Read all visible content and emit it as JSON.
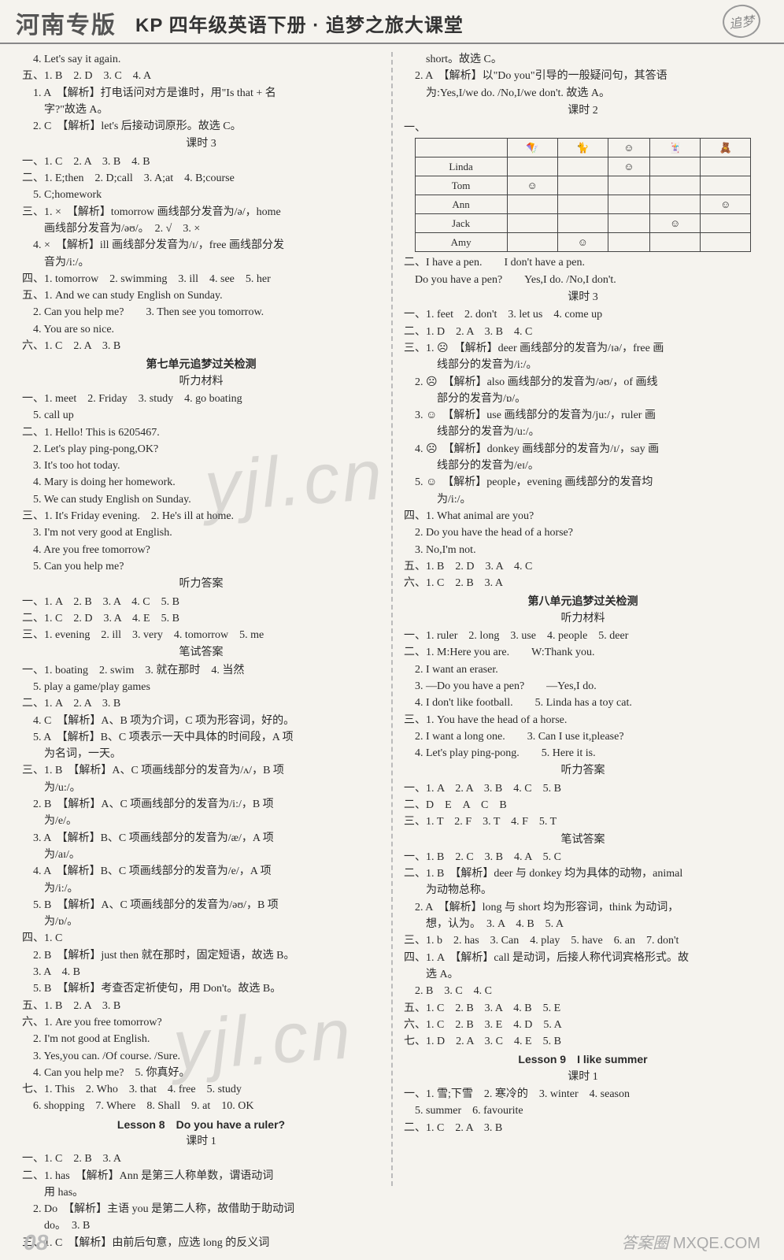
{
  "header": {
    "henan": "河南专版",
    "title": "KP 四年级英语下册 · 追梦之旅大课堂",
    "stamp": "追梦"
  },
  "watermark": {
    "w1": "yjl.cn",
    "w2": "yjl.cn"
  },
  "left": {
    "l01": "　4. Let's say it again.",
    "l02": "五、1. B　2. D　3. C　4. A",
    "l03": "　1. A　【解析】打电话问对方是谁时，用\"Is that + 名",
    "l04": "　　字?\"故选 A。",
    "l05": "　2. C　【解析】let's 后接动词原形。故选 C。",
    "h_ks3": "课时 3",
    "l06": "一、1. C　2. A　3. B　4. B",
    "l07": "二、1. E;then　2. D;call　3. A;at　4. B;course",
    "l08": "　5. C;homework",
    "l09": "三、1. ×　【解析】tomorrow 画线部分发音为/ə/，home",
    "l10": "　　画线部分发音为/əʊ/。　2. √　3. ×",
    "l11": "　4. ×　【解析】ill 画线部分发音为/ɪ/，free 画线部分发",
    "l12": "　　音为/i:/。",
    "l13": "四、1. tomorrow　2. swimming　3. ill　4. see　5. her",
    "l14": "五、1. And we can study English on Sunday.",
    "l15": "　2. Can you help me?　　3. Then see you tomorrow.",
    "l16": "　4. You are so nice.",
    "l17": "六、1. C　2. A　3. B",
    "h_u7": "第七单元追梦过关检测",
    "h_tl": "听力材料",
    "l18": "一、1. meet　2. Friday　3. study　4. go boating",
    "l19": "　5. call up",
    "l20": "二、1. Hello!  This is 6205467.",
    "l21": "　2. Let's play ping-pong,OK?",
    "l22": "　3. It's too hot today.",
    "l23": "　4. Mary is doing her homework.",
    "l24": "　5. We can study English on Sunday.",
    "l25": "三、1. It's Friday evening.　2. He's ill at home.",
    "l26": "　3. I'm not very good at English.",
    "l27": "　4. Are you free tomorrow?",
    "l28": "　5. Can you help me?",
    "h_tlda": "听力答案",
    "l29": "一、1. A　2. B　3. A　4. C　5. B",
    "l30": "二、1. C　2. D　3. A　4. E　5. B",
    "l31": "三、1. evening　2. ill　3. very　4. tomorrow　5. me",
    "h_bsda": "笔试答案",
    "l32": "一、1. boating　2. swim　3. 就在那时　4. 当然",
    "l33": "　5. play a game/play games",
    "l34": "二、1. A　2. A　3. B",
    "l35": "　4. C　【解析】A、B 项为介词，C 项为形容词，好的。",
    "l36": "　5. A　【解析】B、C 项表示一天中具体的时间段，A 项",
    "l37": "　　为名词，一天。",
    "l38": "三、1. B　【解析】A、C 项画线部分的发音为/ʌ/，B 项",
    "l39": "　　为/u:/。",
    "l40": "　2. B　【解析】A、C 项画线部分的发音为/i:/，B 项",
    "l41": "　　为/e/。",
    "l42": "　3. A　【解析】B、C 项画线部分的发音为/æ/，A 项",
    "l43": "　　为/aɪ/。",
    "l44": "　4. A　【解析】B、C 项画线部分的发音为/e/，A 项",
    "l45": "　　为/i:/。",
    "l46": "　5. B　【解析】A、C 项画线部分的发音为/əʊ/，B 项",
    "l47": "　　为/ɒ/。",
    "l48": "四、1. C",
    "l49": "　2. B　【解析】just then 就在那时，固定短语，故选 B。",
    "l50": "　3. A　4. B",
    "l51": "　5. B　【解析】考查否定祈使句，用 Don't。故选 B。",
    "l52": "五、1. B　2. A　3. B",
    "l53": "六、1. Are you free tomorrow?",
    "l54": "　2. I'm not good at English.",
    "l55": "　3. Yes,you can. /Of course. /Sure.",
    "l56": "　4. Can you help me?　5. 你真好。",
    "l57": "七、1. This　2. Who　3. that　4. free　5. study",
    "l58": "　6. shopping　7. Where　8. Shall　9. at　10. OK",
    "h_l8": "Lesson 8　Do you have a ruler?",
    "h_ks1b": "课时 1",
    "l59": "一、1. C　2. B　3. A",
    "l60": "二、1. has　【解析】Ann 是第三人称单数，谓语动词",
    "l61": "　　用 has。",
    "l62": "　2. Do　【解析】主语 you 是第二人称，故借助于助动词",
    "l63": "　　do。　3. B",
    "l64": "三、1. C　【解析】由前后句意，应选 long 的反义词"
  },
  "right": {
    "r01": "　　short。故选 C。",
    "r02": "　2. A　【解析】以\"Do you\"引导的一般疑问句，其答语",
    "r03": "　　为:Yes,I/we do. /No,I/we don't. 故选 A。",
    "h_ks2": "课时 2",
    "r_tbl_intro": "一、",
    "table": {
      "headers": [
        "",
        "风筝",
        "猫",
        "笑脸",
        "卡片",
        "泰迪"
      ],
      "icons": [
        "",
        "🪁",
        "🐈",
        "☺",
        "🃏",
        "🧸"
      ],
      "rows": [
        {
          "name": "Linda",
          "cells": [
            "",
            "",
            "☺",
            "",
            ""
          ]
        },
        {
          "name": "Tom",
          "cells": [
            "☺",
            "",
            "",
            "",
            ""
          ]
        },
        {
          "name": "Ann",
          "cells": [
            "",
            "",
            "",
            "",
            "☺"
          ]
        },
        {
          "name": "Jack",
          "cells": [
            "",
            "",
            "",
            "☺",
            ""
          ]
        },
        {
          "name": "Amy",
          "cells": [
            "",
            "☺",
            "",
            "",
            ""
          ]
        }
      ]
    },
    "r04": "二、I have a pen.　　I don't have a pen.",
    "r05": "　Do you have a pen?　　Yes,I do. /No,I don't.",
    "h_ks3r": "课时 3",
    "r06": "一、1. feet　2. don't　3. let us　4. come up",
    "r07": "二、1. D　2. A　3. B　4. C",
    "r08": "三、1. ☹　【解析】deer 画线部分的发音为/ɪə/，free 画",
    "r09": "　　　线部分的发音为/i:/。",
    "r10": "　2. ☹　【解析】also 画线部分的发音为/əʊ/，of 画线",
    "r11": "　　　部分的发音为/ɒ/。",
    "r12": "　3. ☺　【解析】use 画线部分的发音为/ju:/，ruler 画",
    "r13": "　　　线部分的发音为/u:/。",
    "r14": "　4. ☹　【解析】donkey 画线部分的发音为/ɪ/，say 画",
    "r15": "　　　线部分的发音为/eɪ/。",
    "r16": "　5. ☺　【解析】people，evening 画线部分的发音均",
    "r17": "　　　为/i:/。",
    "r18": "四、1. What animal are you?",
    "r19": "　2. Do you have the head of a horse?",
    "r20": "　3. No,I'm not.",
    "r21": "五、1. B　2. D　3. A　4. C",
    "r22": "六、1. C　2. B　3. A",
    "h_u8": "第八单元追梦过关检测",
    "h_u8_tl": "听力材料",
    "r23": "一、1. ruler　2. long　3. use　4. people　5. deer",
    "r24": "二、1. M:Here you are.　　W:Thank you.",
    "r25": "　2. I want an eraser.",
    "r26": "　3. —Do you have a pen?　　—Yes,I do.",
    "r27": "　4. I don't like football.　　5. Linda has a toy cat.",
    "r28": "三、1. You have the head of a horse.",
    "r29": "　2. I want a long one.　　3. Can I use it,please?",
    "r30": "　4. Let's play ping-pong.　　5. Here it is.",
    "h_u8_tlda": "听力答案",
    "r31": "一、1. A　2. A　3. B　4. C　5. B",
    "r32": "二、D　E　A　C　B",
    "r33": "三、1. T　2. F　3. T　4. F　5. T",
    "h_u8_bs": "笔试答案",
    "r34": "一、1. B　2. C　3. B　4. A　5. C",
    "r35": "二、1. B　【解析】deer 与 donkey 均为具体的动物，animal",
    "r36": "　　为动物总称。",
    "r37": "　2. A　【解析】long 与 short 均为形容词，think 为动词，",
    "r38": "　　想，认为。　3. A　4. B　5. A",
    "r39": "三、1. b　2. has　3. Can　4. play　5. have　6. an　7. don't",
    "r40": "四、1. A　【解析】call 是动词，后接人称代词宾格形式。故",
    "r41": "　　选 A。",
    "r42": "　2. B　3. C　4. C",
    "r43": "五、1. C　2. B　3. A　4. B　5. E",
    "r44": "六、1. C　2. B　3. E　4. D　5. A",
    "r45": "七、1. D　2. A　3. C　4. E　5. B",
    "h_l9": "Lesson 9　I like summer",
    "h_l9_ks1": "课时 1",
    "r46": "一、1. 雪;下雪　2. 寒冷的　3. winter　4. season",
    "r47": "　5. summer　6. favourite",
    "r48": "二、1. C　2. A　3. B"
  },
  "footer": {
    "page": "08",
    "brand": "答案圈",
    "site": "MXQE.COM"
  }
}
